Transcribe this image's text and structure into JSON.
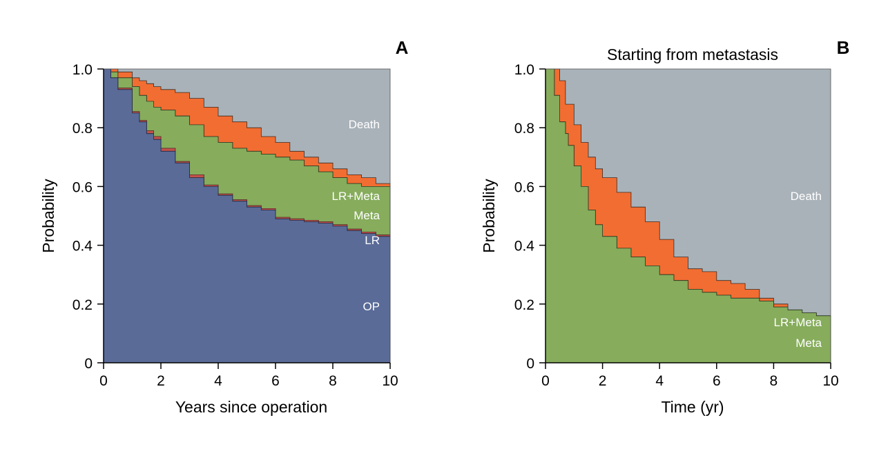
{
  "colors": {
    "op": "#5a6b98",
    "lr": "#c4524a",
    "meta": "#86ac5c",
    "lr_meta": "#f26d32",
    "death": "#a9b2b9",
    "axis": "#000000",
    "label_light": "#ffffff"
  },
  "chart_data": [
    {
      "panel_label": "A",
      "type": "area",
      "stacking": "cumulative probability bands",
      "title": "",
      "xlabel": "Years since operation",
      "ylabel": "Probability",
      "xlim": [
        0,
        10
      ],
      "ylim": [
        0,
        1
      ],
      "xticks": [
        0,
        2,
        4,
        6,
        8,
        10
      ],
      "yticks": [
        0,
        0.2,
        0.4,
        0.6,
        0.8,
        1.0
      ],
      "ytick_labels": [
        "0",
        "0.2",
        "0.4",
        "0.6",
        "0.8",
        "1.0"
      ],
      "grid": false,
      "boundaries": {
        "x": [
          0,
          0.25,
          0.5,
          1,
          1.25,
          1.5,
          1.75,
          2,
          2.5,
          3,
          3.5,
          4,
          4.5,
          5,
          5.5,
          6,
          6.5,
          7,
          7.5,
          8,
          8.5,
          9,
          9.5,
          10
        ],
        "op_lr": [
          1.0,
          0.97,
          0.93,
          0.85,
          0.82,
          0.78,
          0.76,
          0.72,
          0.68,
          0.63,
          0.6,
          0.57,
          0.55,
          0.53,
          0.52,
          0.49,
          0.485,
          0.48,
          0.475,
          0.465,
          0.45,
          0.44,
          0.43,
          0.42
        ],
        "lr_meta": [
          1.0,
          0.97,
          0.935,
          0.855,
          0.825,
          0.79,
          0.77,
          0.73,
          0.685,
          0.64,
          0.605,
          0.575,
          0.555,
          0.535,
          0.525,
          0.495,
          0.49,
          0.485,
          0.48,
          0.47,
          0.455,
          0.445,
          0.435,
          0.42
        ],
        "meta_lrmeta": [
          1.0,
          0.99,
          0.97,
          0.94,
          0.91,
          0.89,
          0.87,
          0.86,
          0.84,
          0.81,
          0.77,
          0.75,
          0.73,
          0.72,
          0.71,
          0.7,
          0.69,
          0.67,
          0.65,
          0.63,
          0.61,
          0.6,
          0.6,
          0.59
        ],
        "lrmeta_death": [
          1.0,
          1.0,
          0.99,
          0.97,
          0.96,
          0.95,
          0.94,
          0.93,
          0.92,
          0.9,
          0.87,
          0.84,
          0.82,
          0.8,
          0.77,
          0.75,
          0.72,
          0.7,
          0.68,
          0.66,
          0.64,
          0.63,
          0.61,
          0.6
        ]
      },
      "series": [
        {
          "name": "OP"
        },
        {
          "name": "LR"
        },
        {
          "name": "Meta"
        },
        {
          "name": "LR+Meta"
        },
        {
          "name": "Death"
        }
      ]
    },
    {
      "panel_label": "B",
      "type": "area",
      "stacking": "cumulative probability bands",
      "title": "Starting from metastasis",
      "xlabel": "Time (yr)",
      "ylabel": "Probability",
      "xlim": [
        0,
        10
      ],
      "ylim": [
        0,
        1
      ],
      "xticks": [
        0,
        2,
        4,
        6,
        8,
        10
      ],
      "yticks": [
        0,
        0.2,
        0.4,
        0.6,
        0.8,
        1.0
      ],
      "ytick_labels": [
        "0",
        "0.2",
        "0.4",
        "0.6",
        "0.8",
        "1.0"
      ],
      "grid": false,
      "boundaries": {
        "x": [
          0,
          0.3,
          0.31,
          0.5,
          0.7,
          0.8,
          1,
          1.25,
          1.5,
          1.75,
          2,
          2.5,
          3,
          3.5,
          4,
          4.5,
          5,
          5.5,
          6,
          6.5,
          7,
          7.5,
          8,
          8.5,
          9,
          9.5,
          10
        ],
        "meta_lrmeta": [
          1.0,
          1.0,
          0.91,
          0.82,
          0.78,
          0.74,
          0.67,
          0.6,
          0.52,
          0.47,
          0.43,
          0.39,
          0.36,
          0.33,
          0.3,
          0.28,
          0.25,
          0.24,
          0.23,
          0.22,
          0.22,
          0.21,
          0.19,
          0.18,
          0.17,
          0.16,
          0.15
        ],
        "lrmeta_death": [
          1.0,
          1.0,
          1.0,
          0.96,
          0.88,
          0.88,
          0.81,
          0.75,
          0.7,
          0.66,
          0.63,
          0.58,
          0.53,
          0.48,
          0.42,
          0.36,
          0.32,
          0.31,
          0.28,
          0.27,
          0.25,
          0.22,
          0.2,
          0.17,
          0.16,
          0.16,
          0.15
        ]
      },
      "series": [
        {
          "name": "Meta"
        },
        {
          "name": "LR+Meta"
        },
        {
          "name": "Death"
        }
      ]
    }
  ]
}
